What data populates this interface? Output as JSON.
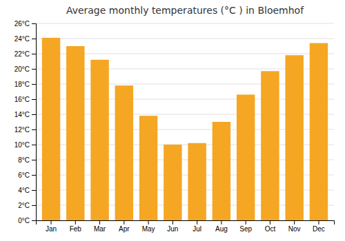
{
  "chart_data": {
    "type": "bar",
    "title": "Average monthly temperatures (°C ) in Bloemhof",
    "categories": [
      "Jan",
      "Feb",
      "Mar",
      "Apr",
      "May",
      "Jun",
      "Jul",
      "Aug",
      "Sep",
      "Oct",
      "Nov",
      "Dec"
    ],
    "values": [
      24.1,
      23.0,
      21.2,
      17.8,
      13.8,
      10.0,
      10.2,
      13.0,
      16.6,
      19.7,
      21.8,
      23.4
    ],
    "color": "#F5A623",
    "ylim": [
      0,
      26
    ],
    "yticks": [
      {
        "value": 0,
        "label": "0°C"
      },
      {
        "value": 2,
        "label": "2°C"
      },
      {
        "value": 4,
        "label": "4°C"
      },
      {
        "value": 6,
        "label": "6°C"
      },
      {
        "value": 8,
        "label": "8°C"
      },
      {
        "value": 10,
        "label": "10°C"
      },
      {
        "value": 12,
        "label": "12°C"
      },
      {
        "value": 14,
        "label": "14°C"
      },
      {
        "value": 16,
        "label": "16°C"
      },
      {
        "value": 18,
        "label": "18°C"
      },
      {
        "value": 20,
        "label": "20°C"
      },
      {
        "value": 22,
        "label": "22°C"
      },
      {
        "value": 24,
        "label": "24°C"
      },
      {
        "value": 26,
        "label": "26°C"
      }
    ],
    "grid": true
  }
}
